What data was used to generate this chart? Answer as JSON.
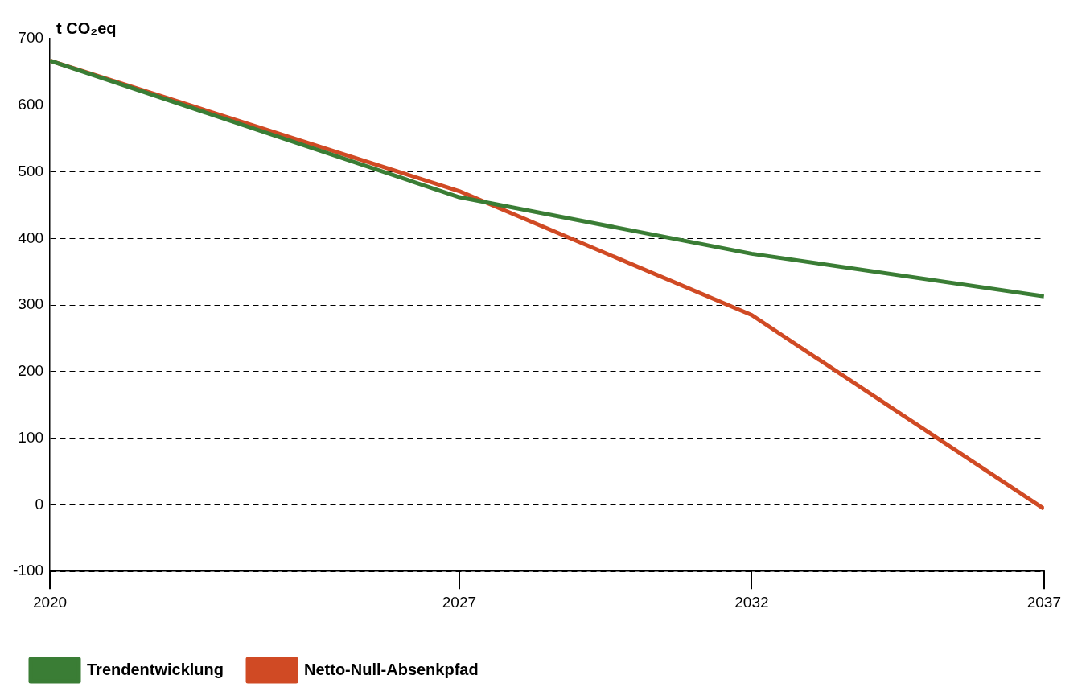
{
  "chart_data": {
    "type": "line",
    "ylabel": "t CO₂eq",
    "x": [
      2020,
      2027,
      2032,
      2037
    ],
    "series": [
      {
        "name": "Trendentwicklung",
        "color": "#3a7d35",
        "values": [
          667,
          462,
          377,
          313
        ]
      },
      {
        "name": "Netto-Null-Absenkpfad",
        "color": "#d04a24",
        "values": [
          667,
          471,
          285,
          -6
        ]
      }
    ],
    "xlim": [
      2020,
      2037
    ],
    "xticks": [
      2020,
      2027,
      2032,
      2037
    ],
    "ylim": [
      -100,
      700
    ],
    "yticks": [
      -100,
      0,
      100,
      200,
      300,
      400,
      500,
      600,
      700
    ],
    "grid": "y",
    "legend": "bottom left",
    "marker": "none",
    "line_style": "solid"
  }
}
